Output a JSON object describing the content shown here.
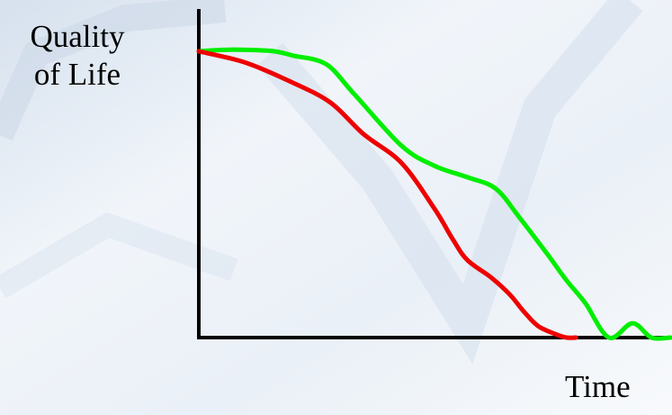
{
  "chart_data": {
    "type": "line",
    "title": "",
    "ylabel_lines": [
      "Quality",
      "of Life"
    ],
    "xlabel": "Time",
    "xlim": [
      0,
      100
    ],
    "ylim": [
      0,
      100
    ],
    "grid": false,
    "legend": "none",
    "series": [
      {
        "color": "#00ee00",
        "x": [
          0,
          5,
          10,
          16,
          20,
          27,
          33,
          43,
          50,
          57,
          63,
          68,
          74,
          78,
          82,
          87,
          92,
          96,
          100
        ],
        "y": [
          100,
          100.5,
          100.5,
          100,
          98.5,
          95.5,
          85,
          67,
          60,
          56,
          52,
          42,
          29,
          20,
          12,
          0,
          5,
          0,
          0
        ]
      },
      {
        "color": "#ee0000",
        "x": [
          0,
          10,
          20,
          28,
          35,
          43,
          50,
          54,
          57,
          62,
          66,
          69,
          72,
          76,
          78,
          80
        ],
        "y": [
          100,
          96,
          89,
          82,
          71,
          61,
          45,
          34,
          27,
          21,
          15,
          9,
          4,
          1,
          0,
          0
        ]
      }
    ],
    "colors": {
      "axis": "#000000",
      "green": "#00ee00",
      "red": "#ee0000"
    }
  }
}
